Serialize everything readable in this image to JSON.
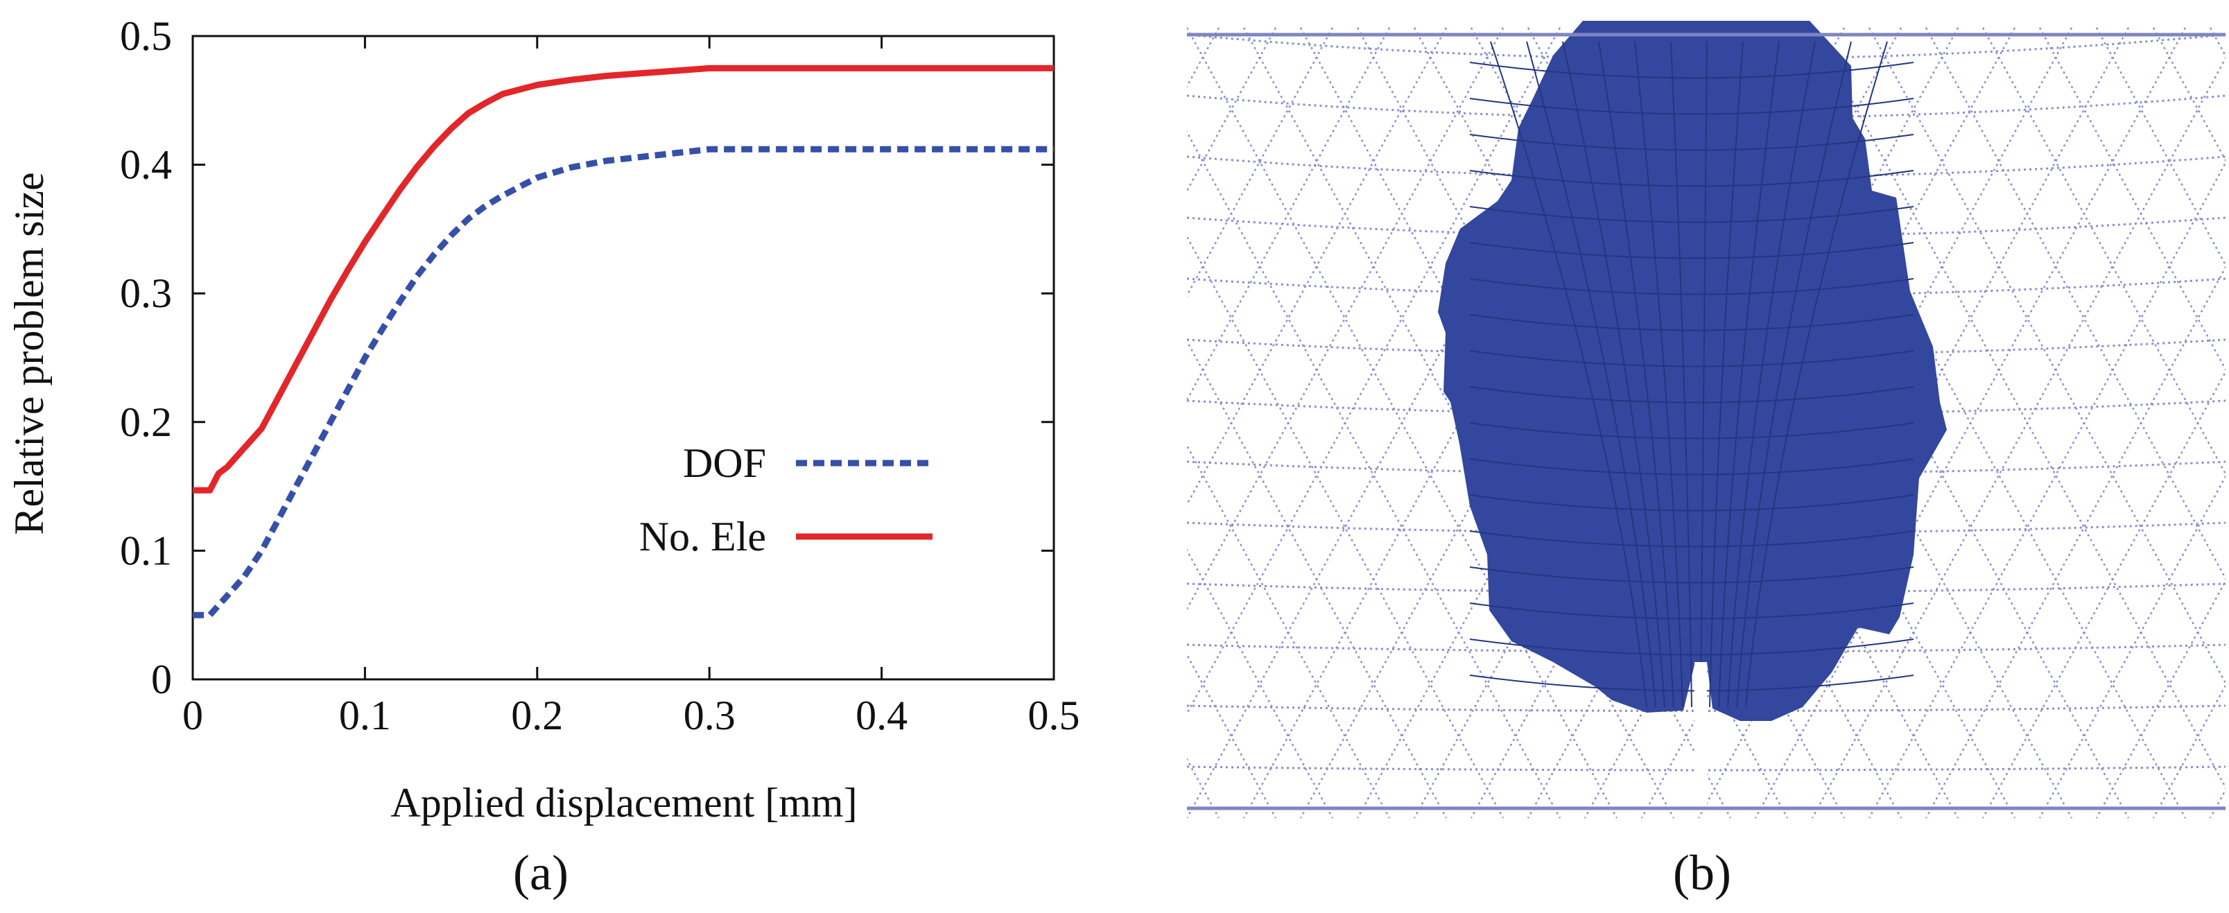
{
  "panel_a": {
    "caption": "(a)"
  },
  "panel_b": {
    "caption": "(b)",
    "mesh_color": "#8a8fc8",
    "region_color": "#33479e"
  },
  "chart_data": {
    "type": "line",
    "title": "",
    "xlabel": "Applied displacement [mm]",
    "ylabel": "Relative problem size",
    "xlim": [
      0,
      0.5
    ],
    "ylim": [
      0,
      0.5
    ],
    "xticks": [
      0,
      0.1,
      0.2,
      0.3,
      0.4,
      0.5
    ],
    "xtick_labels": [
      "0",
      "0.1",
      "0.2",
      "0.3",
      "0.4",
      "0.5"
    ],
    "yticks": [
      0,
      0.1,
      0.2,
      0.3,
      0.4,
      0.5
    ],
    "ytick_labels": [
      "0",
      "0.1",
      "0.2",
      "0.3",
      "0.4",
      "0.5"
    ],
    "grid": false,
    "legend_position": "center-right",
    "series": [
      {
        "name": "DOF",
        "style": "dashed",
        "color": "#3550a8",
        "x": [
          0,
          0.01,
          0.02,
          0.03,
          0.04,
          0.05,
          0.06,
          0.07,
          0.08,
          0.09,
          0.1,
          0.11,
          0.12,
          0.13,
          0.14,
          0.15,
          0.16,
          0.17,
          0.18,
          0.2,
          0.22,
          0.24,
          0.26,
          0.28,
          0.3,
          0.35,
          0.4,
          0.45,
          0.5
        ],
        "y": [
          0.05,
          0.05,
          0.065,
          0.08,
          0.1,
          0.125,
          0.15,
          0.175,
          0.2,
          0.225,
          0.25,
          0.272,
          0.293,
          0.313,
          0.33,
          0.345,
          0.358,
          0.368,
          0.376,
          0.39,
          0.398,
          0.403,
          0.406,
          0.409,
          0.412,
          0.412,
          0.412,
          0.412,
          0.412
        ]
      },
      {
        "name": "No. Ele",
        "style": "solid",
        "color": "#e32629",
        "x": [
          0,
          0.01,
          0.015,
          0.02,
          0.03,
          0.04,
          0.05,
          0.06,
          0.07,
          0.08,
          0.09,
          0.1,
          0.11,
          0.12,
          0.13,
          0.14,
          0.15,
          0.16,
          0.17,
          0.18,
          0.2,
          0.22,
          0.24,
          0.26,
          0.28,
          0.3,
          0.35,
          0.4,
          0.45,
          0.5
        ],
        "y": [
          0.147,
          0.147,
          0.16,
          0.165,
          0.18,
          0.195,
          0.22,
          0.245,
          0.27,
          0.295,
          0.318,
          0.34,
          0.36,
          0.38,
          0.398,
          0.414,
          0.428,
          0.44,
          0.448,
          0.455,
          0.462,
          0.466,
          0.469,
          0.471,
          0.473,
          0.475,
          0.475,
          0.475,
          0.475,
          0.475
        ]
      }
    ]
  }
}
